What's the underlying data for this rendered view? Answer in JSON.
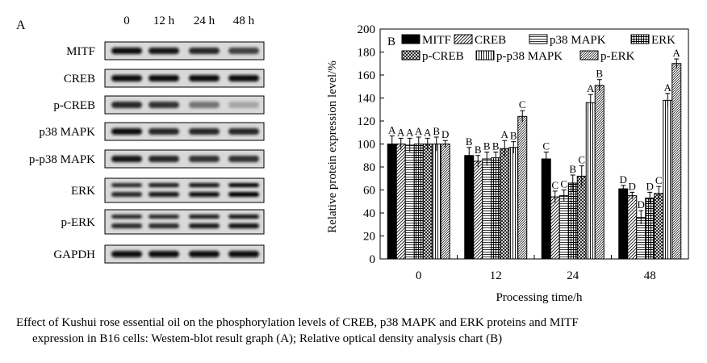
{
  "blot": {
    "panel_label": "A",
    "timepoints": [
      "0",
      "12 h",
      "24 h",
      "48 h"
    ],
    "proteins": [
      "MITF",
      "CREB",
      "p-CREB",
      "p38 MAPK",
      "p-p38 MAPK",
      "ERK",
      "p-ERK",
      "GAPDH"
    ],
    "band_intensity": [
      [
        0.95,
        0.92,
        0.85,
        0.75
      ],
      [
        0.95,
        0.95,
        0.95,
        0.95
      ],
      [
        0.85,
        0.8,
        0.55,
        0.35
      ],
      [
        0.95,
        0.85,
        0.85,
        0.85
      ],
      [
        0.9,
        0.85,
        0.8,
        0.8
      ],
      [
        0.85,
        0.9,
        0.95,
        1.0
      ],
      [
        0.85,
        0.85,
        0.9,
        0.95
      ],
      [
        0.95,
        0.95,
        0.95,
        0.95
      ]
    ],
    "double_band": [
      false,
      false,
      false,
      false,
      false,
      true,
      true,
      false
    ]
  },
  "chart_data": {
    "type": "bar",
    "panel_label": "B",
    "categories": [
      "0",
      "12",
      "24",
      "48"
    ],
    "xlabel": "Processing time/h",
    "ylabel": "Relative protein expression level/%",
    "ylim": [
      0,
      200
    ],
    "yticks": [
      0,
      20,
      40,
      60,
      80,
      100,
      120,
      140,
      160,
      180,
      200
    ],
    "grid": false,
    "legend_position": "top",
    "series": [
      {
        "name": "MITF",
        "pattern": "solid",
        "values": [
          100,
          90,
          87,
          61
        ],
        "errors": [
          7,
          7,
          6,
          3
        ],
        "letters": [
          "A",
          "B",
          "C",
          "D"
        ]
      },
      {
        "name": "CREB",
        "pattern": "diagonal",
        "values": [
          100,
          85,
          54,
          55
        ],
        "errors": [
          5,
          5,
          5,
          3
        ],
        "letters": [
          "A",
          "B",
          "C",
          "D"
        ]
      },
      {
        "name": "p38 MAPK",
        "pattern": "hlines",
        "values": [
          99,
          87,
          55,
          36
        ],
        "errors": [
          6,
          6,
          5,
          6
        ],
        "letters": [
          "A",
          "B",
          "C",
          "D"
        ]
      },
      {
        "name": "ERK",
        "pattern": "grid",
        "values": [
          100,
          88,
          66,
          53
        ],
        "errors": [
          6,
          5,
          7,
          5
        ],
        "letters": [
          "A",
          "B",
          "B",
          "D"
        ]
      },
      {
        "name": "p-CREB",
        "pattern": "crosshatch",
        "values": [
          100,
          96,
          72,
          57
        ],
        "errors": [
          5,
          7,
          9,
          6
        ],
        "letters": [
          "A",
          "A",
          "C",
          "C"
        ]
      },
      {
        "name": "p-p38 MAPK",
        "pattern": "vlines",
        "values": [
          100,
          97,
          136,
          138
        ],
        "errors": [
          6,
          5,
          7,
          6
        ],
        "letters": [
          "B",
          "B",
          "A",
          "A"
        ]
      },
      {
        "name": "p-ERK",
        "pattern": "diagdense",
        "values": [
          100,
          124,
          151,
          170
        ],
        "errors": [
          3,
          5,
          5,
          4
        ],
        "letters": [
          "D",
          "C",
          "B",
          "A"
        ]
      }
    ]
  },
  "caption": {
    "line1": "Effect of Kushui rose essential oil on the phosphorylation levels of CREB, p38 MAPK and ERK proteins and MITF",
    "line2": "expression in B16 cells: Westem-blot result graph (A); Relative optical density analysis chart (B)"
  }
}
